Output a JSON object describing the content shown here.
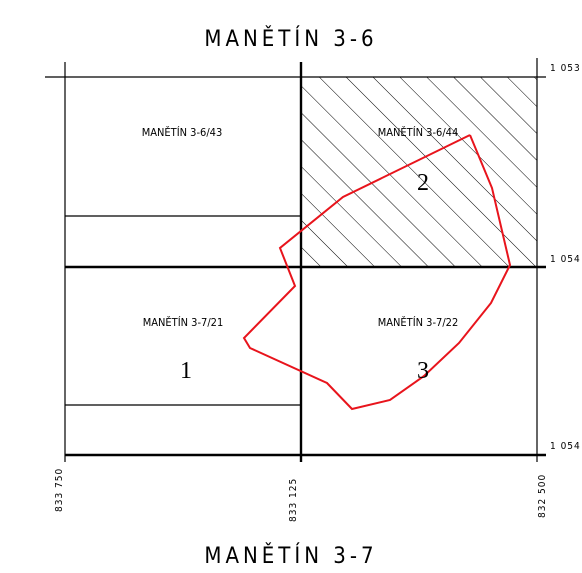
{
  "map_title_top": "MANĚTÍN 3-6",
  "map_title_bottom": "MANĚTÍN 3-7",
  "sheets": [
    {
      "id": "s1",
      "label": "MANĚTÍN 3-6/43",
      "hatched": false
    },
    {
      "id": "s2",
      "label": "MANĚTÍN 3-6/44",
      "hatched": true
    },
    {
      "id": "s3",
      "label": "MANĚTÍN 3-7/21",
      "hatched": false
    },
    {
      "id": "s4",
      "label": "MANĚTÍN 3-7/22",
      "hatched": false
    }
  ],
  "area_numbers": [
    "1",
    "2",
    "3"
  ],
  "x_coordinates": [
    "833 750",
    "833 125",
    "832 500"
  ],
  "y_coordinates": [
    "1 053",
    "1 054",
    "1 054"
  ],
  "colors": {
    "boundary": "#e8141c",
    "grid": "#000000",
    "hatch": "#000000",
    "background": "#ffffff"
  }
}
